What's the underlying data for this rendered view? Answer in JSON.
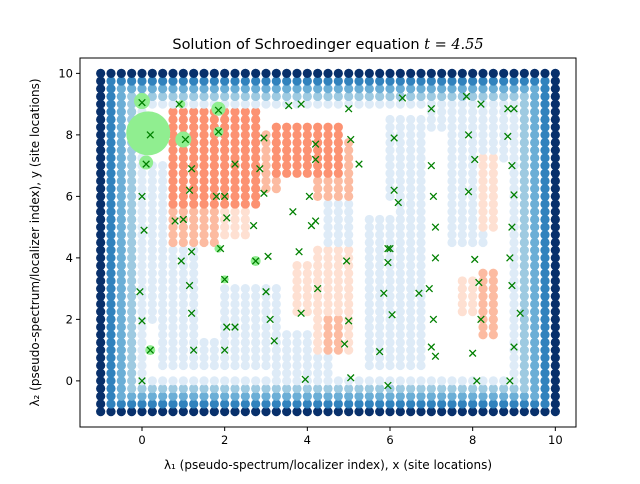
{
  "chart_data": {
    "type": "scatter",
    "title": "Solution of Schroedinger equation $t = 4.55$",
    "title_text": "Solution of Schroedinger equation ",
    "title_math": "t = 4.55",
    "xlabel": "λ₁ (pseudo-spectrum/localizer index), x (site locations)",
    "ylabel": "λ₂ (pseudo-spectrum/localizer index), y (site locations)",
    "xlim": [
      -1.5,
      10.5
    ],
    "ylim": [
      -1.5,
      10.5
    ],
    "xticks": [
      0,
      2,
      4,
      6,
      8,
      10
    ],
    "yticks": [
      0,
      2,
      4,
      6,
      8,
      10
    ],
    "grid": false,
    "colors": {
      "negative_scale": [
        "#deebf7",
        "#9ecae1",
        "#6baed6",
        "#3182bd",
        "#08306b"
      ],
      "positive_scale": [
        "#fee0d2",
        "#fcbba1",
        "#fc9272"
      ],
      "wavefunction": "#90ee90",
      "site_marker": "#008000"
    },
    "grid_points": {
      "x_range": [
        -1,
        10
      ],
      "y_range": [
        -1,
        10
      ],
      "step": 0.25,
      "note": "localizer index lattice, colored by sign/magnitude"
    },
    "negative_regions": [
      {
        "x": [
          5.5,
          6.75
        ],
        "y": [
          0.5,
          5.25
        ]
      },
      {
        "x": [
          6.25,
          6.75
        ],
        "y": [
          4.0,
          8.0
        ]
      },
      {
        "x": [
          6.0,
          6.75
        ],
        "y": [
          6.0,
          8.5
        ]
      },
      {
        "x": [
          7.5,
          8.25
        ],
        "y": [
          4.5,
          9.5
        ]
      },
      {
        "x": [
          8.5,
          9.25
        ],
        "y": [
          7.25,
          9.25
        ]
      },
      {
        "x": [
          0.25,
          0.75
        ],
        "y": [
          2.0,
          7.0
        ]
      },
      {
        "x": [
          0.5,
          1.25
        ],
        "y": [
          0.5,
          4.5
        ]
      },
      {
        "x": [
          1.25,
          3.25
        ],
        "y": [
          0.5,
          1.25
        ]
      },
      {
        "x": [
          2.0,
          3.25
        ],
        "y": [
          1.0,
          3.0
        ]
      },
      {
        "x": [
          3.25,
          4.5
        ],
        "y": [
          -0.25,
          1.5
        ]
      },
      {
        "x": [
          4.5,
          5.0
        ],
        "y": [
          4.5,
          5.75
        ]
      },
      {
        "x": [
          7.0,
          7.5
        ],
        "y": [
          8.25,
          9.0
        ]
      }
    ],
    "positive_regions": [
      {
        "x": [
          0.75,
          2.75
        ],
        "y": [
          5.75,
          8.75
        ],
        "level": 2
      },
      {
        "x": [
          0.75,
          1.75
        ],
        "y": [
          4.5,
          6.0
        ],
        "level": 1
      },
      {
        "x": [
          2.25,
          3.25
        ],
        "y": [
          6.25,
          8.0
        ],
        "level": 1
      },
      {
        "x": [
          3.25,
          4.75
        ],
        "y": [
          6.75,
          8.25
        ],
        "level": 2
      },
      {
        "x": [
          4.25,
          5.0
        ],
        "y": [
          6.0,
          7.75
        ],
        "level": 1
      },
      {
        "x": [
          4.25,
          5.0
        ],
        "y": [
          1.0,
          4.25
        ],
        "level": 0
      },
      {
        "x": [
          3.75,
          4.25
        ],
        "y": [
          2.25,
          3.75
        ],
        "level": 0
      },
      {
        "x": [
          4.5,
          4.75
        ],
        "y": [
          1.0,
          2.0
        ],
        "level": 1
      },
      {
        "x": [
          8.25,
          8.5
        ],
        "y": [
          5.0,
          7.25
        ],
        "level": 0
      },
      {
        "x": [
          7.75,
          8.0
        ],
        "y": [
          2.25,
          3.25
        ],
        "level": 0
      },
      {
        "x": [
          8.25,
          8.5
        ],
        "y": [
          1.5,
          3.5
        ],
        "level": 1
      },
      {
        "x": [
          1.5,
          2.5
        ],
        "y": [
          4.75,
          5.75
        ],
        "level": 0
      }
    ],
    "wavefunction_circles": [
      {
        "x": 0.15,
        "y": 8.05,
        "r": 22
      },
      {
        "x": 0.0,
        "y": 9.1,
        "r": 8
      },
      {
        "x": 0.1,
        "y": 7.1,
        "r": 7
      },
      {
        "x": 1.0,
        "y": 7.85,
        "r": 8
      },
      {
        "x": 1.85,
        "y": 8.85,
        "r": 7
      },
      {
        "x": 1.85,
        "y": 8.1,
        "r": 5
      },
      {
        "x": 0.95,
        "y": 9.0,
        "r": 4
      },
      {
        "x": 2.75,
        "y": 3.9,
        "r": 5
      },
      {
        "x": 0.2,
        "y": 1.0,
        "r": 5
      },
      {
        "x": 1.85,
        "y": 4.3,
        "r": 4
      },
      {
        "x": 2.0,
        "y": 3.3,
        "r": 4
      }
    ],
    "site_locations": {
      "x": [
        0.0,
        0.2,
        0.1,
        0.9,
        1.05,
        1.85,
        1.85,
        1.2,
        1.15,
        1.0,
        1.2,
        1.9,
        2.25,
        2.0,
        2.75,
        3.0,
        3.1,
        3.55,
        3.85,
        4.2,
        4.2,
        5.0,
        5.05,
        4.05,
        3.65,
        2.95,
        2.85,
        3.2,
        2.05,
        2.0,
        1.15,
        0.95,
        1.2,
        1.8,
        2.05,
        2.7,
        2.95,
        3.05,
        3.95,
        4.25,
        4.95,
        5.0,
        4.9,
        4.2,
        3.8,
        2.0,
        0.0,
        0.0,
        -0.05,
        0.05,
        0.2,
        0.0,
        0.8,
        1.25,
        5.25,
        5.75,
        6.1,
        6.1,
        6.3,
        6.2,
        6.0,
        5.95,
        5.85,
        5.95,
        6.05,
        6.7,
        7.0,
        7.0,
        7.05,
        7.1,
        7.1,
        6.95,
        7.05,
        7.0,
        7.1,
        7.9,
        8.05,
        7.9,
        8.05,
        7.85,
        8.15,
        8.2,
        8.1,
        8.0,
        8.85,
        8.85,
        8.95,
        9.0,
        8.95,
        8.9,
        8.95,
        9.0,
        8.9,
        9.15,
        9.0,
        8.2,
        5.95,
        5.05,
        4.1,
        2.25,
        3.85
      ],
      "y": [
        9.05,
        8.0,
        7.05,
        9.0,
        7.85,
        8.8,
        8.1,
        6.9,
        6.2,
        5.25,
        4.2,
        4.3,
        7.05,
        6.0,
        3.9,
        2.9,
        2.0,
        8.95,
        9.0,
        7.7,
        7.2,
        8.85,
        7.85,
        6.0,
        5.5,
        7.9,
        6.9,
        1.3,
        1.75,
        1.0,
        3.1,
        3.9,
        2.2,
        6.0,
        5.3,
        5.05,
        6.1,
        4.05,
        0.05,
        3.0,
        3.9,
        1.95,
        1.2,
        5.2,
        4.2,
        3.3,
        0.0,
        1.95,
        2.9,
        4.9,
        1.0,
        6.0,
        5.2,
        1.0,
        7.05,
        0.95,
        6.2,
        7.9,
        9.2,
        5.8,
        4.3,
        3.85,
        2.85,
        -0.15,
        2.15,
        2.85,
        8.85,
        7.0,
        6.0,
        5.0,
        4.0,
        3.0,
        2.0,
        1.1,
        0.8,
        8.0,
        7.2,
        6.15,
        3.95,
        9.25,
        3.2,
        2.0,
        0.0,
        0.9,
        8.85,
        7.95,
        7.0,
        6.05,
        5.0,
        4.0,
        3.1,
        1.1,
        0.0,
        2.2,
        8.85,
        9.0,
        4.3,
        0.1,
        5.05,
        1.75,
        2.2
      ]
    }
  }
}
